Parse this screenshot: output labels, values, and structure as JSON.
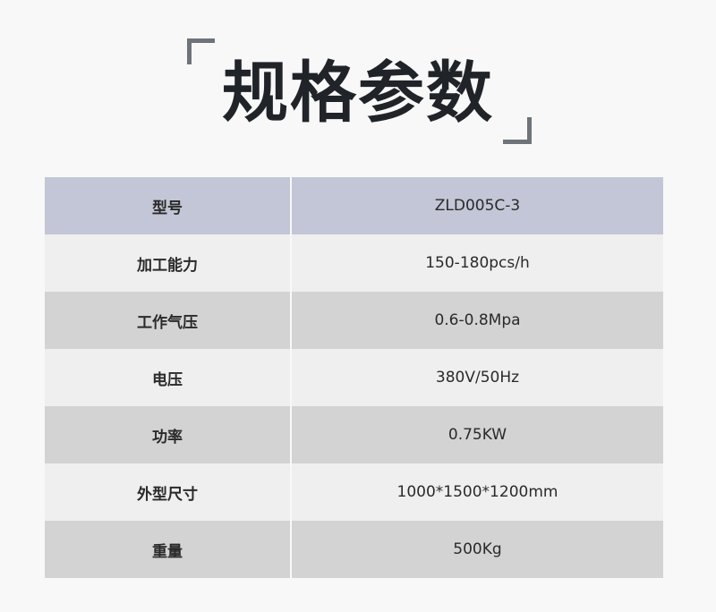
{
  "title": "规格参数",
  "colors": {
    "header": "#c3c6d6",
    "row_light": "#efefef",
    "row_dark": "#d3d3d3",
    "bracket": "#6f747b",
    "title": "#202428"
  },
  "specs": [
    {
      "label": "型号",
      "value": "ZLD005C-3"
    },
    {
      "label": "加工能力",
      "value": "150-180pcs/h"
    },
    {
      "label": "工作气压",
      "value": "0.6-0.8Mpa"
    },
    {
      "label": "电压",
      "value": "380V/50Hz"
    },
    {
      "label": "功率",
      "value": "0.75KW"
    },
    {
      "label": "外型尺寸",
      "value": "1000*1500*1200mm"
    },
    {
      "label": "重量",
      "value": "500Kg"
    }
  ]
}
